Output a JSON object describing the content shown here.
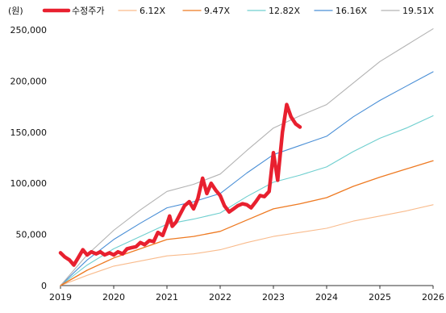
{
  "chart_data": {
    "type": "line",
    "unit_label": "(원)",
    "x_ticks": [
      "2019",
      "2020",
      "2021",
      "2022",
      "2023",
      "2024",
      "2025",
      "2026"
    ],
    "y_ticks": [
      "0",
      "50,000",
      "100,000",
      "150,000",
      "200,000",
      "250,000"
    ],
    "xlim": [
      2019,
      2026
    ],
    "ylim": [
      0,
      250000
    ],
    "grid": false,
    "legend_position": "top",
    "series": [
      {
        "name": "수정주가",
        "color": "#e8202f",
        "width": 4.5,
        "points": [
          [
            2019.0,
            32000
          ],
          [
            2019.08,
            28000
          ],
          [
            2019.17,
            25000
          ],
          [
            2019.25,
            20000
          ],
          [
            2019.33,
            27000
          ],
          [
            2019.42,
            35000
          ],
          [
            2019.5,
            30000
          ],
          [
            2019.58,
            33000
          ],
          [
            2019.67,
            31000
          ],
          [
            2019.75,
            33000
          ],
          [
            2019.83,
            30000
          ],
          [
            2019.92,
            32000
          ],
          [
            2020.0,
            30000
          ],
          [
            2020.08,
            33000
          ],
          [
            2020.17,
            31000
          ],
          [
            2020.25,
            36000
          ],
          [
            2020.33,
            37000
          ],
          [
            2020.42,
            38000
          ],
          [
            2020.5,
            42000
          ],
          [
            2020.58,
            40000
          ],
          [
            2020.67,
            44000
          ],
          [
            2020.75,
            43000
          ],
          [
            2020.83,
            52000
          ],
          [
            2020.92,
            49000
          ],
          [
            2021.0,
            60000
          ],
          [
            2021.05,
            68000
          ],
          [
            2021.1,
            58000
          ],
          [
            2021.17,
            62000
          ],
          [
            2021.25,
            70000
          ],
          [
            2021.33,
            78000
          ],
          [
            2021.42,
            82000
          ],
          [
            2021.5,
            75000
          ],
          [
            2021.58,
            85000
          ],
          [
            2021.67,
            105000
          ],
          [
            2021.75,
            90000
          ],
          [
            2021.83,
            100000
          ],
          [
            2021.92,
            93000
          ],
          [
            2022.0,
            88000
          ],
          [
            2022.08,
            78000
          ],
          [
            2022.17,
            72000
          ],
          [
            2022.25,
            75000
          ],
          [
            2022.33,
            78000
          ],
          [
            2022.42,
            80000
          ],
          [
            2022.5,
            79000
          ],
          [
            2022.58,
            76000
          ],
          [
            2022.67,
            82000
          ],
          [
            2022.75,
            88000
          ],
          [
            2022.83,
            87000
          ],
          [
            2022.92,
            92000
          ],
          [
            2023.0,
            130000
          ],
          [
            2023.08,
            103000
          ],
          [
            2023.17,
            150000
          ],
          [
            2023.25,
            177000
          ],
          [
            2023.33,
            165000
          ],
          [
            2023.42,
            158000
          ],
          [
            2023.5,
            155000
          ]
        ]
      },
      {
        "name": "6.12X",
        "color": "#f9bb8c",
        "width": 1.1,
        "points": [
          [
            2019.0,
            0
          ],
          [
            2019.5,
            10000
          ],
          [
            2020.0,
            19000
          ],
          [
            2020.5,
            24000
          ],
          [
            2021.0,
            29000
          ],
          [
            2021.5,
            31000
          ],
          [
            2022.0,
            35000
          ],
          [
            2022.5,
            42000
          ],
          [
            2023.0,
            48000
          ],
          [
            2023.5,
            52000
          ],
          [
            2024.0,
            56000
          ],
          [
            2024.5,
            63000
          ],
          [
            2025.0,
            68000
          ],
          [
            2025.5,
            73000
          ],
          [
            2026.0,
            79000
          ]
        ]
      },
      {
        "name": "9.47X",
        "color": "#ee7a22",
        "width": 1.3,
        "points": [
          [
            2019.0,
            0
          ],
          [
            2019.5,
            15000
          ],
          [
            2020.0,
            27000
          ],
          [
            2020.5,
            36000
          ],
          [
            2021.0,
            45000
          ],
          [
            2021.5,
            48000
          ],
          [
            2022.0,
            53000
          ],
          [
            2022.5,
            64000
          ],
          [
            2023.0,
            75000
          ],
          [
            2023.5,
            80000
          ],
          [
            2024.0,
            86000
          ],
          [
            2024.5,
            97000
          ],
          [
            2025.0,
            106000
          ],
          [
            2025.5,
            114000
          ],
          [
            2026.0,
            122000
          ]
        ]
      },
      {
        "name": "12.82X",
        "color": "#6fcfcf",
        "width": 1.1,
        "points": [
          [
            2019.0,
            0
          ],
          [
            2019.5,
            20000
          ],
          [
            2020.0,
            36000
          ],
          [
            2020.5,
            48000
          ],
          [
            2021.0,
            60000
          ],
          [
            2021.5,
            65000
          ],
          [
            2022.0,
            71000
          ],
          [
            2022.5,
            87000
          ],
          [
            2023.0,
            101000
          ],
          [
            2023.5,
            108000
          ],
          [
            2024.0,
            116000
          ],
          [
            2024.5,
            131000
          ],
          [
            2025.0,
            144000
          ],
          [
            2025.5,
            154000
          ],
          [
            2026.0,
            166000
          ]
        ]
      },
      {
        "name": "16.16X",
        "color": "#4a8fd6",
        "width": 1.1,
        "points": [
          [
            2019.0,
            0
          ],
          [
            2019.5,
            25000
          ],
          [
            2020.0,
            45000
          ],
          [
            2020.5,
            61000
          ],
          [
            2021.0,
            76000
          ],
          [
            2021.5,
            82000
          ],
          [
            2022.0,
            90000
          ],
          [
            2022.5,
            110000
          ],
          [
            2023.0,
            128000
          ],
          [
            2023.5,
            137000
          ],
          [
            2024.0,
            146000
          ],
          [
            2024.5,
            165000
          ],
          [
            2025.0,
            181000
          ],
          [
            2025.5,
            195000
          ],
          [
            2026.0,
            209000
          ]
        ]
      },
      {
        "name": "19.51X",
        "color": "#b3b3b3",
        "width": 1.1,
        "points": [
          [
            2019.0,
            0
          ],
          [
            2019.5,
            30000
          ],
          [
            2020.0,
            54000
          ],
          [
            2020.5,
            74000
          ],
          [
            2021.0,
            92000
          ],
          [
            2021.5,
            99000
          ],
          [
            2022.0,
            109000
          ],
          [
            2022.5,
            132000
          ],
          [
            2023.0,
            154000
          ],
          [
            2023.5,
            166000
          ],
          [
            2024.0,
            177000
          ],
          [
            2024.5,
            198000
          ],
          [
            2025.0,
            219000
          ],
          [
            2025.5,
            235000
          ],
          [
            2026.0,
            251000
          ]
        ]
      }
    ]
  }
}
